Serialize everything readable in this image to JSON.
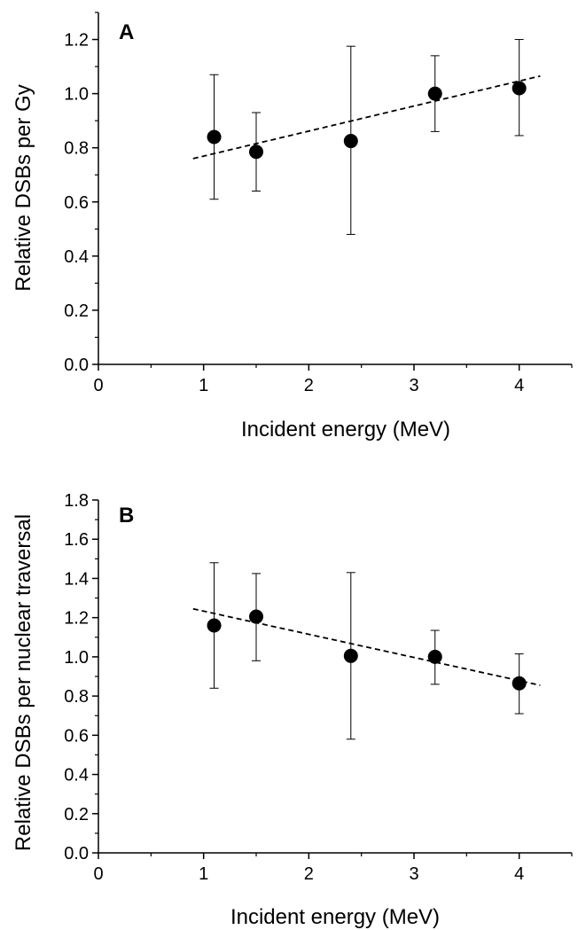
{
  "chart_data": [
    {
      "type": "scatter",
      "panel_label": "A",
      "xlabel": "Incident energy (MeV)",
      "ylabel": "Relative DSBs per Gy",
      "xlim": [
        0,
        4.5
      ],
      "ylim": [
        0,
        1.3
      ],
      "x_ticks": [
        0,
        1,
        2,
        3,
        4
      ],
      "y_ticks": [
        0.0,
        0.2,
        0.4,
        0.6,
        0.8,
        1.0,
        1.2
      ],
      "x_tick_labels": [
        "0",
        "1",
        "2",
        "3",
        "4"
      ],
      "y_tick_labels": [
        "0.0",
        "0.2",
        "0.4",
        "0.6",
        "0.8",
        "1.0",
        "1.2"
      ],
      "grid": false,
      "series": [
        {
          "x": [
            1.1,
            1.5,
            2.4,
            3.2,
            4.0
          ],
          "y": [
            0.84,
            0.785,
            0.825,
            1.0,
            1.02
          ],
          "err_low": [
            0.61,
            0.64,
            0.48,
            0.86,
            0.845
          ],
          "err_high": [
            1.07,
            0.93,
            1.175,
            1.14,
            1.2
          ]
        }
      ],
      "fit_line": {
        "style": "dashed",
        "x": [
          0.9,
          4.2
        ],
        "y": [
          0.76,
          1.065
        ]
      }
    },
    {
      "type": "scatter",
      "panel_label": "B",
      "xlabel": "Incident energy (MeV)",
      "ylabel": "Relative DSBs per nuclear traversal",
      "xlim": [
        0,
        4.5
      ],
      "ylim": [
        0,
        1.8
      ],
      "x_ticks": [
        0,
        1,
        2,
        3,
        4
      ],
      "y_ticks": [
        0.0,
        0.2,
        0.4,
        0.6,
        0.8,
        1.0,
        1.2,
        1.4,
        1.6,
        1.8
      ],
      "x_tick_labels": [
        "0",
        "1",
        "2",
        "3",
        "4"
      ],
      "y_tick_labels": [
        "0.0",
        "0.2",
        "0.4",
        "0.6",
        "0.8",
        "1.0",
        "1.2",
        "1.4",
        "1.6",
        "1.8"
      ],
      "grid": false,
      "series": [
        {
          "x": [
            1.1,
            1.5,
            2.4,
            3.2,
            4.0
          ],
          "y": [
            1.16,
            1.205,
            1.005,
            1.0,
            0.865
          ],
          "err_low": [
            0.84,
            0.98,
            0.58,
            0.86,
            0.71
          ],
          "err_high": [
            1.48,
            1.425,
            1.43,
            1.135,
            1.015
          ]
        }
      ],
      "fit_line": {
        "style": "dashed",
        "x": [
          0.9,
          4.2
        ],
        "y": [
          1.245,
          0.855
        ]
      }
    }
  ]
}
